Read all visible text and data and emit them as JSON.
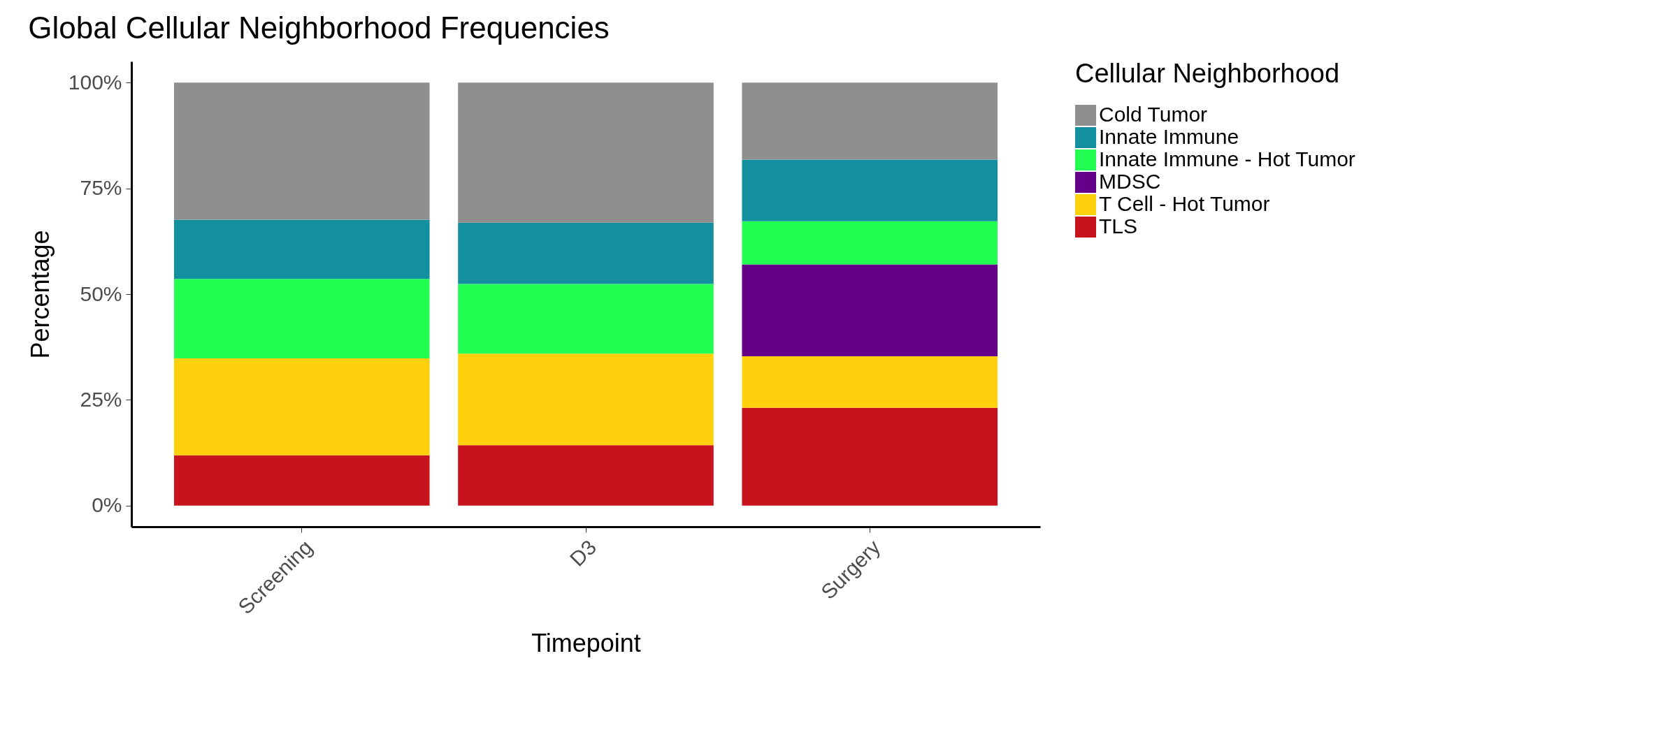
{
  "chart_data": {
    "type": "bar",
    "title": "Global Cellular Neighborhood Frequencies",
    "xlabel": "Timepoint",
    "ylabel": "Percentage",
    "legend_title": "Cellular Neighborhood",
    "categories": [
      "Screening",
      "D3",
      "Surgery"
    ],
    "stacked": true,
    "series": [
      {
        "name": "TLS",
        "color": "#c8131e",
        "values": [
          11.9,
          14.3,
          23.1
        ]
      },
      {
        "name": "T Cell - Hot Tumor",
        "color": "#ffd10c",
        "values": [
          22.9,
          21.6,
          12.2
        ]
      },
      {
        "name": "MDSC",
        "color": "#650088",
        "values": [
          0,
          0,
          21.7
        ]
      },
      {
        "name": "Innate Immune - Hot Tumor",
        "color": "#22ff52",
        "values": [
          18.8,
          16.5,
          10.2
        ]
      },
      {
        "name": "Innate Immune",
        "color": "#1390a0",
        "values": [
          14.0,
          14.5,
          14.6
        ]
      },
      {
        "name": "Cold Tumor",
        "color": "#8f8f8f",
        "values": [
          32.4,
          33.1,
          18.2
        ]
      }
    ],
    "ylim": [
      -5,
      105
    ],
    "yticks": [
      {
        "value": 0,
        "label": "0%"
      },
      {
        "value": 25,
        "label": "25%"
      },
      {
        "value": 50,
        "label": "50%"
      },
      {
        "value": 75,
        "label": "75%"
      },
      {
        "value": 100,
        "label": "100%"
      }
    ],
    "grid": false,
    "legend": "right"
  }
}
